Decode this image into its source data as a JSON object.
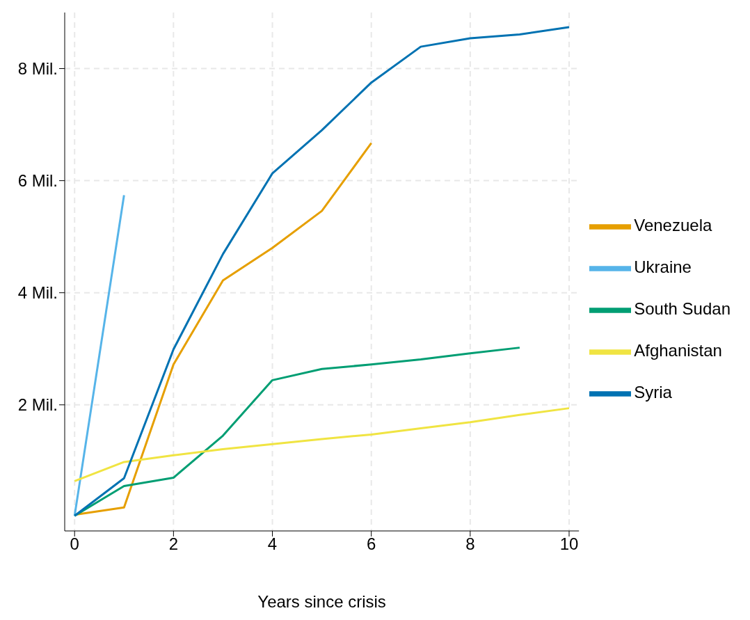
{
  "chart_data": {
    "type": "line",
    "xlabel": "Years since crisis",
    "x": [
      0,
      1,
      2,
      3,
      4,
      5,
      6,
      7,
      8,
      9,
      10
    ],
    "series": [
      {
        "name": "Venezuela",
        "color": "#e69f00",
        "values": [
          0.04,
          0.17,
          2.72,
          4.22,
          4.8,
          5.46,
          6.67,
          null,
          null,
          null,
          null
        ]
      },
      {
        "name": "Ukraine",
        "color": "#56b4e9",
        "values": [
          0.02,
          5.74,
          null,
          null,
          null,
          null,
          null,
          null,
          null,
          null,
          null
        ]
      },
      {
        "name": "South Sudan",
        "color": "#009e73",
        "values": [
          0.02,
          0.55,
          0.7,
          1.45,
          2.44,
          2.64,
          2.72,
          2.81,
          2.92,
          3.02,
          null
        ]
      },
      {
        "name": "Afghanistan",
        "color": "#f0e442",
        "values": [
          0.64,
          0.98,
          1.1,
          1.21,
          1.3,
          1.39,
          1.47,
          1.58,
          1.69,
          1.82,
          1.94
        ]
      },
      {
        "name": "Syria",
        "color": "#0072b2",
        "values": [
          0.02,
          0.69,
          2.99,
          4.69,
          6.13,
          6.9,
          7.75,
          8.39,
          8.54,
          8.61,
          8.74
        ]
      }
    ],
    "xlim": [
      -0.2,
      10.2
    ],
    "xticks": [
      0,
      2,
      4,
      6,
      8,
      10
    ],
    "ylim": [
      -0.25,
      9
    ],
    "yticks": [
      {
        "value": 2,
        "label": "2 Mil."
      },
      {
        "value": 4,
        "label": "4 Mil."
      },
      {
        "value": 6,
        "label": "6 Mil."
      },
      {
        "value": 8,
        "label": "8 Mil."
      }
    ],
    "grid": true,
    "legend": "right",
    "marker": "none",
    "line_style": "solid"
  }
}
